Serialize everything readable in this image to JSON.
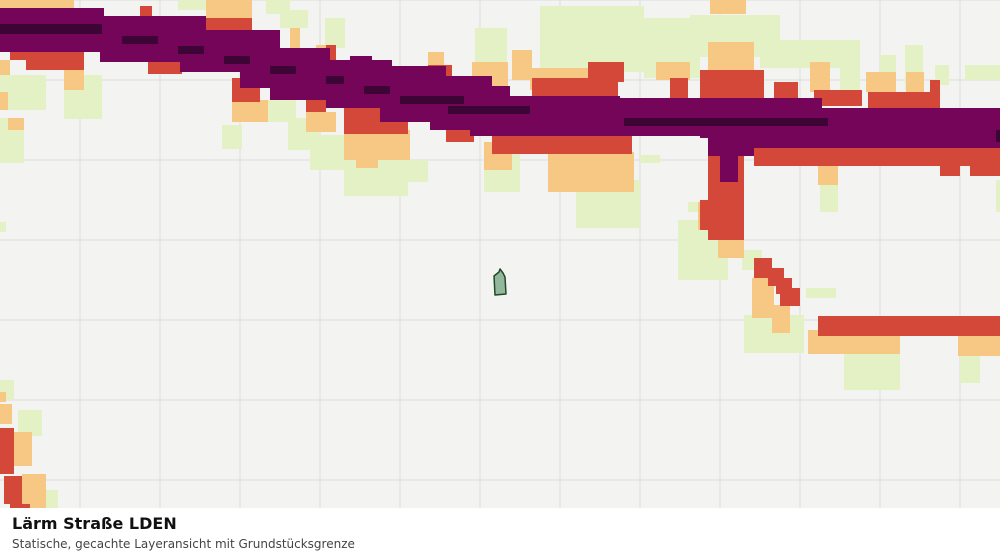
{
  "layer": {
    "title": "Lärm Straße LDEN",
    "subtitle": "Statische, gecachte Layeransicht mit Grundstücksgrenze"
  },
  "colors": {
    "background": "#f3f4f2",
    "grid": "#dcdcdc",
    "level_1": "#e3f1c4",
    "level_2": "#f6c884",
    "level_3": "#d4483a",
    "level_4": "#740558",
    "level_5": "#3d0536",
    "parcel_fill": "#93b79a",
    "parcel_stroke": "#1f4a2a"
  }
}
